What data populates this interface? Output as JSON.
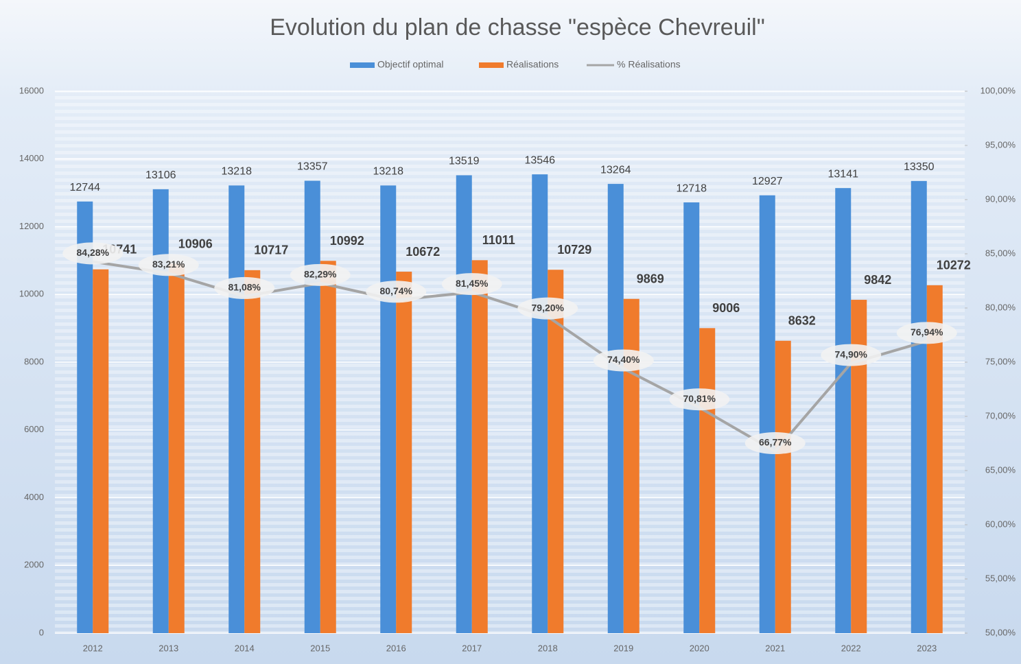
{
  "chart_data": {
    "type": "bar_line",
    "title": "Evolution du plan de chasse \"espèce Chevreuil\"",
    "categories": [
      "2012",
      "2013",
      "2014",
      "2015",
      "2016",
      "2017",
      "2018",
      "2019",
      "2020",
      "2021",
      "2022",
      "2023"
    ],
    "series": [
      {
        "name": "Objectif optimal",
        "color": "#4a8fd8",
        "type": "bar",
        "values": [
          12744,
          13106,
          13218,
          13357,
          13218,
          13519,
          13546,
          13264,
          12718,
          12927,
          13141,
          13350
        ]
      },
      {
        "name": "Réalisations",
        "color": "#f07b2c",
        "type": "bar",
        "values": [
          10741,
          10906,
          10717,
          10992,
          10672,
          11011,
          10729,
          9869,
          9006,
          8632,
          9842,
          10272
        ]
      },
      {
        "name": "% Réalisations",
        "color": "#a5a5a5",
        "type": "line",
        "axis": "y2",
        "values": [
          84.28,
          83.21,
          81.08,
          82.29,
          80.74,
          81.45,
          79.2,
          74.4,
          70.81,
          66.77,
          74.9,
          76.94
        ],
        "value_labels": [
          "84,28%",
          "83,21%",
          "81,08%",
          "82,29%",
          "80,74%",
          "81,45%",
          "79,20%",
          "74,40%",
          "70,81%",
          "66,77%",
          "74,90%",
          "76,94%"
        ]
      }
    ],
    "ylim": [
      0,
      16000
    ],
    "yticks": [
      0,
      2000,
      4000,
      6000,
      8000,
      10000,
      12000,
      14000,
      16000
    ],
    "y2lim": [
      50,
      100
    ],
    "y2ticks": [
      {
        "value": 50,
        "label": "50,00%"
      },
      {
        "value": 55,
        "label": "55,00%"
      },
      {
        "value": 60,
        "label": "60,00%"
      },
      {
        "value": 65,
        "label": "65,00%"
      },
      {
        "value": 70,
        "label": "70,00%"
      },
      {
        "value": 75,
        "label": "75,00%"
      },
      {
        "value": 80,
        "label": "80,00%"
      },
      {
        "value": 85,
        "label": "85,00%"
      },
      {
        "value": 90,
        "label": "90,00%"
      },
      {
        "value": 95,
        "label": "95,00%"
      },
      {
        "value": 100,
        "label": "100,00%"
      }
    ],
    "grid": true,
    "legend": "top"
  }
}
